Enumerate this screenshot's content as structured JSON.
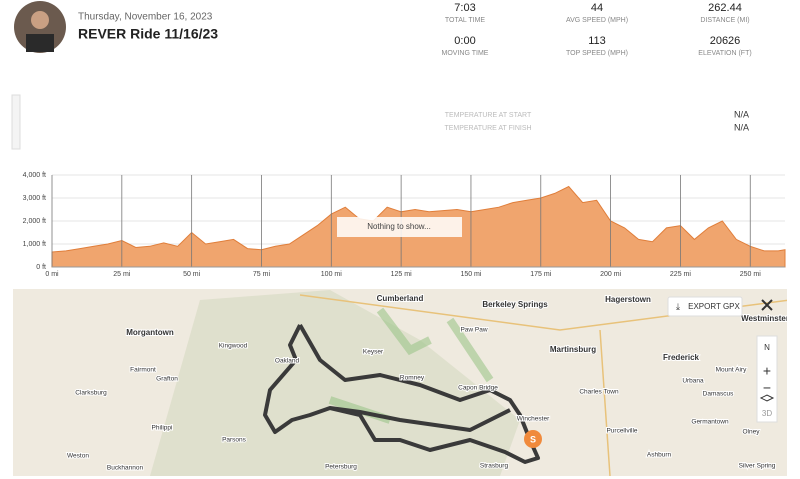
{
  "header": {
    "date": "Thursday, November 16, 2023",
    "title": "REVER Ride 11/16/23"
  },
  "stats": [
    {
      "value": "7:03",
      "label": "TOTAL TIME"
    },
    {
      "value": "44",
      "label": "AVG SPEED (MPH)"
    },
    {
      "value": "262.44",
      "label": "DISTANCE (MI)"
    },
    {
      "value": "0:00",
      "label": "MOVING TIME"
    },
    {
      "value": "113",
      "label": "TOP SPEED (MPH)"
    },
    {
      "value": "20626",
      "label": "ELEVATION (FT)"
    }
  ],
  "temperature": [
    {
      "label": "TEMPERATURE AT START",
      "value": "N/A"
    },
    {
      "label": "TEMPERATURE AT FINISH",
      "value": "N/A"
    }
  ],
  "chart_data": {
    "type": "area",
    "color": "#f0a56e",
    "notice": "Nothing to show...",
    "x": [
      0,
      5,
      10,
      15,
      20,
      25,
      30,
      35,
      40,
      45,
      50,
      55,
      60,
      65,
      70,
      75,
      80,
      85,
      90,
      95,
      100,
      105,
      110,
      115,
      120,
      125,
      130,
      135,
      140,
      145,
      150,
      155,
      160,
      165,
      170,
      175,
      180,
      185,
      190,
      195,
      200,
      205,
      210,
      215,
      220,
      225,
      230,
      235,
      240,
      245,
      250,
      255,
      260,
      262.44
    ],
    "values": [
      650,
      700,
      800,
      900,
      1000,
      1150,
      850,
      900,
      1050,
      900,
      1500,
      1000,
      1100,
      1200,
      800,
      750,
      900,
      1000,
      1400,
      1800,
      2300,
      2600,
      2100,
      2000,
      2600,
      2400,
      2500,
      2400,
      2450,
      2500,
      2400,
      2500,
      2600,
      2800,
      2900,
      3000,
      3200,
      3500,
      2800,
      2900,
      2000,
      1700,
      1200,
      1100,
      1700,
      1800,
      1200,
      1700,
      2000,
      1200,
      900,
      700,
      700,
      750
    ],
    "xlim": [
      0,
      262.44
    ],
    "ylim": [
      0,
      4000
    ],
    "xticks": [
      {
        "value": 0,
        "label": "0 mi"
      },
      {
        "value": 25,
        "label": "25 mi"
      },
      {
        "value": 50,
        "label": "50 mi"
      },
      {
        "value": 75,
        "label": "75 mi"
      },
      {
        "value": 100,
        "label": "100 mi"
      },
      {
        "value": 125,
        "label": "125 mi"
      },
      {
        "value": 150,
        "label": "150 mi"
      },
      {
        "value": 175,
        "label": "175 mi"
      },
      {
        "value": 200,
        "label": "200 mi"
      },
      {
        "value": 225,
        "label": "225 mi"
      },
      {
        "value": 250,
        "label": "250 mi"
      }
    ],
    "yticks": [
      {
        "value": 0,
        "label": "0 ft"
      },
      {
        "value": 1000,
        "label": "1,000 ft"
      },
      {
        "value": 2000,
        "label": "2,000 ft"
      },
      {
        "value": 3000,
        "label": "3,000 ft"
      },
      {
        "value": 4000,
        "label": "4,000 ft"
      }
    ],
    "grid": true
  },
  "map": {
    "export_button": "EXPORT GPX",
    "compass": "N",
    "mode_3d": "3D",
    "start_marker": "S",
    "places": [
      "Morgantown",
      "Cumberland",
      "Berkeley Springs",
      "Hagerstown",
      "Westminster",
      "Fairmont",
      "Kingwood",
      "Keyser",
      "Paw Paw",
      "Martinsburg",
      "Frederick",
      "Mount Airy",
      "Urbana",
      "Damascus",
      "Romney",
      "Capon Bridge",
      "Charles Town",
      "Clarksburg",
      "Grafton",
      "Winchester",
      "Purcellville",
      "Germantown",
      "Olney",
      "Philippi",
      "Parsons",
      "Petersburg",
      "Weston",
      "Buckhannon",
      "Strasburg",
      "Ashburn",
      "Silver Spring",
      "Oakland"
    ]
  }
}
